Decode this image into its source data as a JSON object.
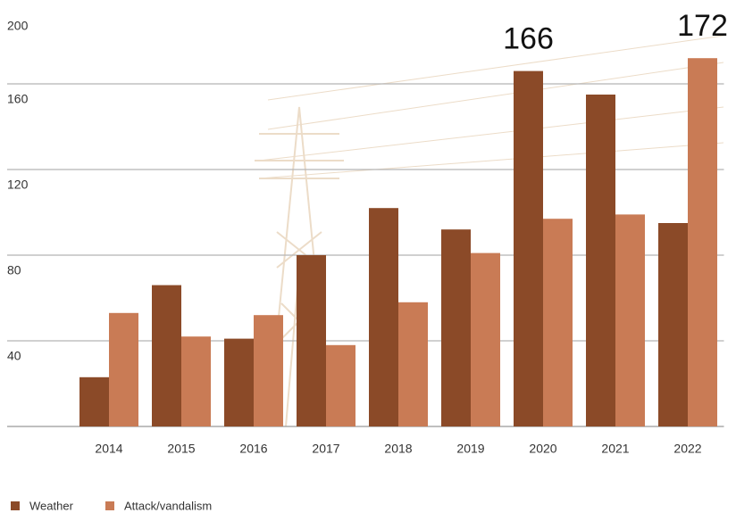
{
  "chart_data": {
    "type": "bar",
    "categories": [
      "2014",
      "2015",
      "2016",
      "2017",
      "2018",
      "2019",
      "2020",
      "2021",
      "2022"
    ],
    "series": [
      {
        "name": "Weather",
        "color": "#8b4a28",
        "values": [
          23,
          66,
          41,
          80,
          102,
          92,
          166,
          155,
          95
        ],
        "value_labels": [
          null,
          null,
          null,
          null,
          null,
          null,
          "166",
          null,
          null
        ]
      },
      {
        "name": "Attack/vandalism",
        "color": "#c97b55",
        "values": [
          53,
          42,
          52,
          38,
          58,
          81,
          97,
          99,
          172
        ],
        "value_labels": [
          null,
          null,
          null,
          null,
          null,
          null,
          null,
          null,
          "172"
        ]
      }
    ],
    "ylim": [
      0,
      200
    ],
    "yticks": [
      40,
      80,
      120,
      160,
      200
    ],
    "grid": true,
    "legend": "bottom-left"
  }
}
